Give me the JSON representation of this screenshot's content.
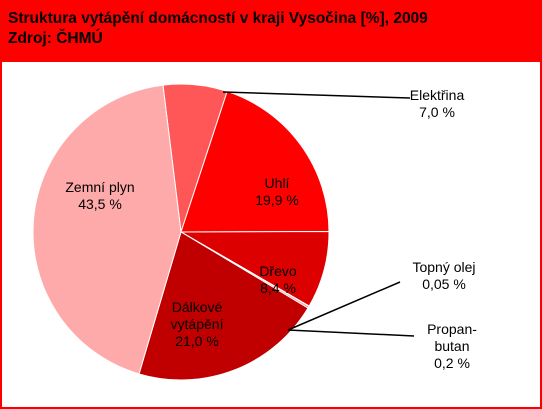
{
  "header": {
    "title_line1": "Struktura vytápění domácností v kraji Vysočina [%], 2009",
    "title_line2": "Zdroj: ČHMÚ"
  },
  "chart_data": {
    "type": "pie",
    "title": "Struktura vytápění domácností v kraji Vysočina [%], 2009",
    "source": "Zdroj: ČHMÚ",
    "slices": [
      {
        "name": "Elektřina",
        "value": 7.0,
        "label": "7,0 %",
        "color": "#ff5757"
      },
      {
        "name": "Uhlí",
        "value": 19.9,
        "label": "19,9 %",
        "color": "#ff0000"
      },
      {
        "name": "Dřevo",
        "value": 8.4,
        "label": "8,4 %",
        "color": "#dd0000"
      },
      {
        "name": "Topný olej",
        "value": 0.05,
        "label": "0,05 %",
        "color": "#e03030"
      },
      {
        "name": "Propan-butan",
        "value": 0.2,
        "label": "0,2 %",
        "color": "#ff8080"
      },
      {
        "name": "Dálkové vytápění",
        "value": 21.0,
        "label": "21,0 %",
        "color": "#c00000"
      },
      {
        "name": "Zemní plyn",
        "value": 43.5,
        "label": "43,5 %",
        "color": "#ffaaaa"
      }
    ]
  }
}
